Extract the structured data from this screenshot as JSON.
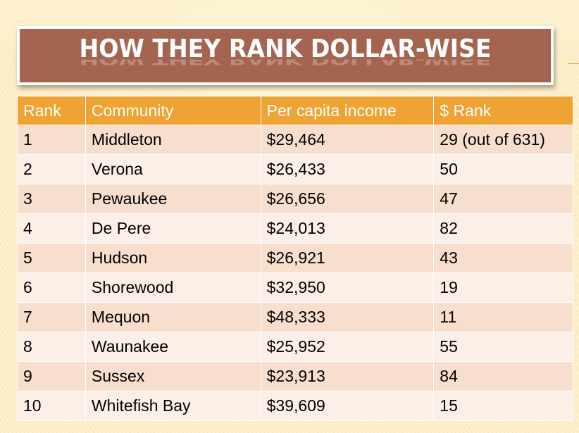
{
  "slide": {
    "title": "HOW THEY RANK DOLLAR-WISE",
    "colors": {
      "background": "#fdf0cc",
      "title_bar": "#a5644f",
      "header_row": "#eea332",
      "row_odd": "#f8dfcd",
      "row_even": "#fcefe7"
    }
  },
  "table": {
    "headers": [
      "Rank",
      "Community",
      "Per capita income",
      "$ Rank"
    ],
    "rows": [
      [
        "1",
        "Middleton",
        "$29,464",
        "29 (out of 631)"
      ],
      [
        "2",
        "Verona",
        "$26,433",
        "50"
      ],
      [
        "3",
        "Pewaukee",
        "$26,656",
        "47"
      ],
      [
        "4",
        "De Pere",
        "$24,013",
        "82"
      ],
      [
        "5",
        "Hudson",
        "$26,921",
        "43"
      ],
      [
        "6",
        "Shorewood",
        "$32,950",
        "19"
      ],
      [
        "7",
        "Mequon",
        "$48,333",
        "11"
      ],
      [
        "8",
        "Waunakee",
        "$25,952",
        "55"
      ],
      [
        "9",
        "Sussex",
        "$23,913",
        "84"
      ],
      [
        "10",
        "Whitefish Bay",
        "$39,609",
        "15"
      ]
    ]
  }
}
